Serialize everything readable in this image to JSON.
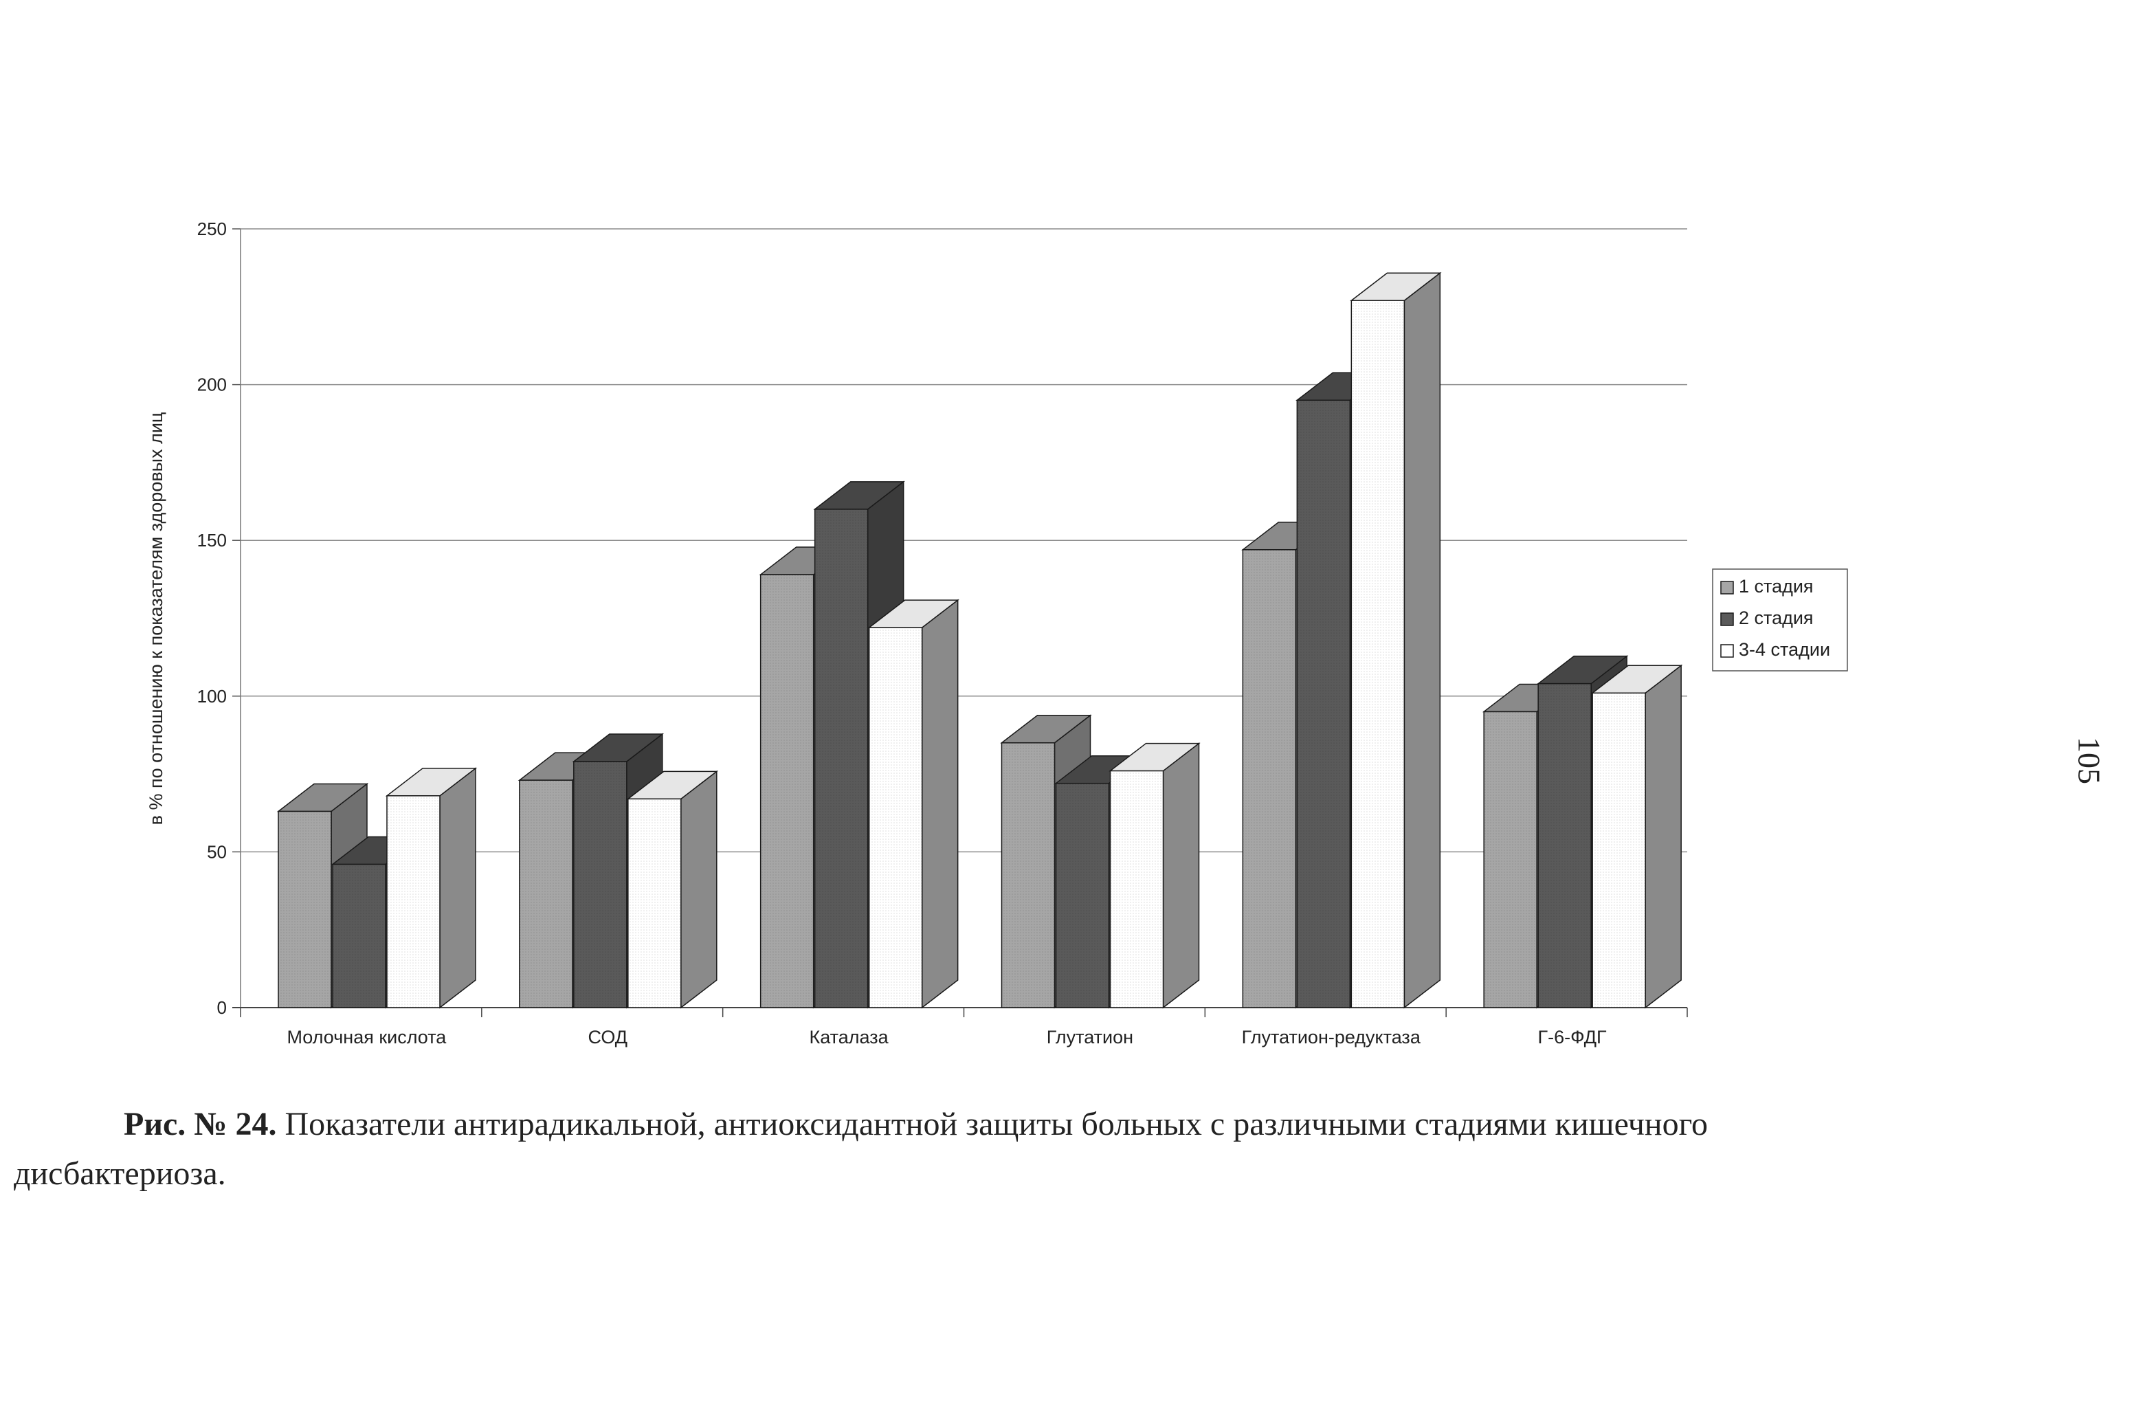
{
  "chart_data": {
    "type": "bar",
    "title": "",
    "xlabel": "",
    "ylabel": "в % по отношению к показателям здоровых лиц",
    "ylim": [
      0,
      250
    ],
    "yticks": [
      0,
      50,
      100,
      150,
      200,
      250
    ],
    "grid": true,
    "legend_position": "right",
    "categories": [
      "Молочная кислота",
      "СОД",
      "Каталаза",
      "Глутатион",
      "Глутатион-редуктаза",
      "Г-6-ФДГ"
    ],
    "series": [
      {
        "name": "1 стадия",
        "values": [
          63,
          73,
          139,
          85,
          147,
          95
        ]
      },
      {
        "name": "2 стадия",
        "values": [
          46,
          79,
          160,
          72,
          195,
          104
        ]
      },
      {
        "name": "3-4 стадии",
        "values": [
          68,
          67,
          122,
          76,
          227,
          101
        ]
      }
    ]
  },
  "colors": {
    "series_front": [
      "#a6a6a6",
      "#5a5a5a",
      "#ffffff"
    ],
    "series_side": [
      "#707070",
      "#3b3b3b",
      "#8a8a8a"
    ],
    "series_top": [
      "#8a8a8a",
      "#464646",
      "#e6e6e6"
    ]
  },
  "caption": {
    "lead": "Рис. № 24.",
    "text_line1": " Показатели антирадикальной, антиоксидантной защиты больных с различными стадиями кишечного",
    "text_line2": "дисбактериоза."
  },
  "page_number": "105"
}
